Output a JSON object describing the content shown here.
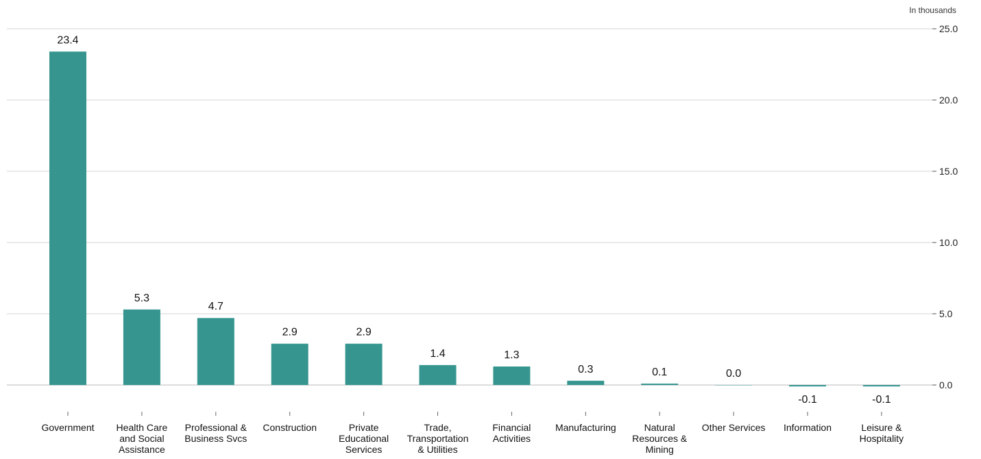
{
  "chart_data": {
    "type": "bar",
    "title": "",
    "unit_note": "In thousands",
    "xlabel": "",
    "ylabel": "",
    "categories": [
      "Government",
      "Health Care and Social Assistance",
      "Professional & Business Svcs",
      "Construction",
      "Private Educational Services",
      "Trade, Transportation & Utilities",
      "Financial Activities",
      "Manufacturing",
      "Natural Resources & Mining",
      "Other Services",
      "Information",
      "Leisure & Hospitality"
    ],
    "category_lines": [
      [
        "Government"
      ],
      [
        "Health Care",
        "and Social",
        "Assistance"
      ],
      [
        "Professional &",
        "Business Svcs"
      ],
      [
        "Construction"
      ],
      [
        "Private",
        "Educational",
        "Services"
      ],
      [
        "Trade,",
        "Transportation",
        "& Utilities"
      ],
      [
        "Financial",
        "Activities"
      ],
      [
        "Manufacturing"
      ],
      [
        "Natural",
        "Resources &",
        "Mining"
      ],
      [
        "Other Services"
      ],
      [
        "Information"
      ],
      [
        "Leisure &",
        "Hospitality"
      ]
    ],
    "values": [
      23.4,
      5.3,
      4.7,
      2.9,
      2.9,
      1.4,
      1.3,
      0.3,
      0.1,
      0.0,
      -0.1,
      -0.1
    ],
    "data_labels": [
      "23.4",
      "5.3",
      "4.7",
      "2.9",
      "2.9",
      "1.4",
      "1.3",
      "0.3",
      "0.1",
      "0.0",
      "-0.1",
      "-0.1"
    ],
    "yticks": [
      0,
      5,
      10,
      15,
      20,
      25
    ],
    "ytick_labels": [
      "0.0",
      "5.0",
      "10.0",
      "15.0",
      "20.0",
      "25.0"
    ],
    "ylim": [
      -2,
      25
    ],
    "y_axis_side": "right",
    "grid": true,
    "legend": "none",
    "bar_color": "#36968f"
  }
}
